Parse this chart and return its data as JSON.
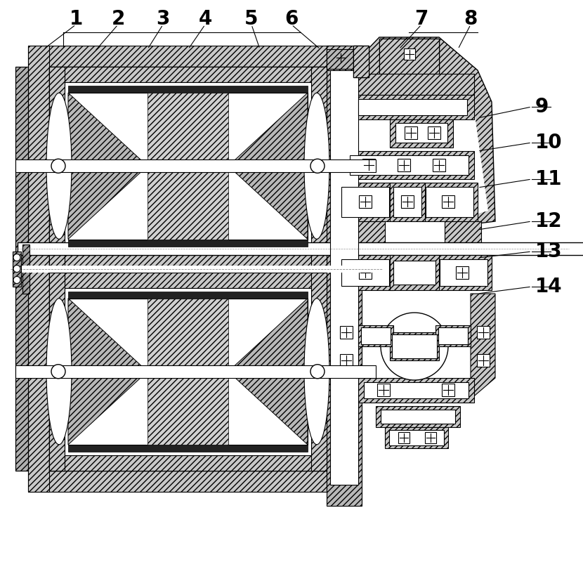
{
  "bg_color": "#ffffff",
  "figsize": [
    8.3,
    8.17
  ],
  "dpi": 100,
  "hfc": "#c8c8c8",
  "hatch": "////",
  "font_size": 20
}
